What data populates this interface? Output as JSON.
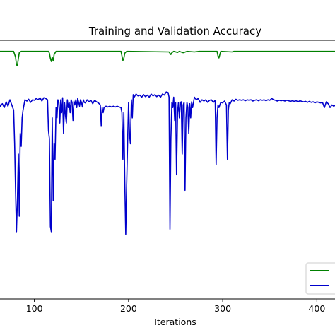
{
  "chart_data": {
    "type": "line",
    "title": "Training and Validation Accuracy",
    "xlabel": "Iterations",
    "ylabel": "",
    "xlim": [
      62,
      420
    ],
    "ylim": [
      0.0,
      1.0
    ],
    "x_ticks": [
      100,
      200,
      300,
      400
    ],
    "grid": false,
    "legend_placement": "bottom-right",
    "series": [
      {
        "name": "",
        "color": "#008000",
        "points": [
          [
            62,
            0.957
          ],
          [
            78,
            0.957
          ],
          [
            80,
            0.935
          ],
          [
            81,
            0.905
          ],
          [
            82,
            0.902
          ],
          [
            83,
            0.93
          ],
          [
            84,
            0.952
          ],
          [
            86,
            0.957
          ],
          [
            115,
            0.957
          ],
          [
            116,
            0.95
          ],
          [
            117,
            0.93
          ],
          [
            118,
            0.918
          ],
          [
            119,
            0.935
          ],
          [
            120,
            0.92
          ],
          [
            121,
            0.945
          ],
          [
            123,
            0.957
          ],
          [
            192,
            0.957
          ],
          [
            193,
            0.94
          ],
          [
            194,
            0.922
          ],
          [
            195,
            0.93
          ],
          [
            196,
            0.95
          ],
          [
            198,
            0.957
          ],
          [
            243,
            0.955
          ],
          [
            245,
            0.945
          ],
          [
            246,
            0.952
          ],
          [
            248,
            0.957
          ],
          [
            252,
            0.953
          ],
          [
            254,
            0.957
          ],
          [
            258,
            0.952
          ],
          [
            262,
            0.957
          ],
          [
            270,
            0.955
          ],
          [
            275,
            0.957
          ],
          [
            294,
            0.957
          ],
          [
            295,
            0.94
          ],
          [
            296,
            0.932
          ],
          [
            297,
            0.945
          ],
          [
            298,
            0.957
          ],
          [
            310,
            0.955
          ],
          [
            312,
            0.957
          ],
          [
            420,
            0.957
          ]
        ]
      },
      {
        "name": "",
        "color": "#0000cc",
        "points": [
          [
            62,
            0.76
          ],
          [
            64,
            0.745
          ],
          [
            66,
            0.755
          ],
          [
            68,
            0.74
          ],
          [
            70,
            0.762
          ],
          [
            72,
            0.745
          ],
          [
            74,
            0.77
          ],
          [
            76,
            0.75
          ],
          [
            78,
            0.73
          ],
          [
            79,
            0.6
          ],
          [
            80,
            0.42
          ],
          [
            81,
            0.26
          ],
          [
            82,
            0.38
          ],
          [
            83,
            0.56
          ],
          [
            84,
            0.32
          ],
          [
            85,
            0.64
          ],
          [
            86,
            0.59
          ],
          [
            87,
            0.7
          ],
          [
            88,
            0.73
          ],
          [
            90,
            0.77
          ],
          [
            92,
            0.765
          ],
          [
            94,
            0.772
          ],
          [
            96,
            0.76
          ],
          [
            98,
            0.77
          ],
          [
            100,
            0.768
          ],
          [
            102,
            0.775
          ],
          [
            104,
            0.77
          ],
          [
            106,
            0.778
          ],
          [
            108,
            0.765
          ],
          [
            110,
            0.778
          ],
          [
            112,
            0.775
          ],
          [
            114,
            0.77
          ],
          [
            115,
            0.65
          ],
          [
            116,
            0.62
          ],
          [
            117,
            0.28
          ],
          [
            118,
            0.26
          ],
          [
            119,
            0.7
          ],
          [
            120,
            0.38
          ],
          [
            121,
            0.6
          ],
          [
            122,
            0.54
          ],
          [
            123,
            0.74
          ],
          [
            124,
            0.7
          ],
          [
            125,
            0.77
          ],
          [
            126,
            0.76
          ],
          [
            127,
            0.68
          ],
          [
            128,
            0.77
          ],
          [
            129,
            0.72
          ],
          [
            130,
            0.778
          ],
          [
            131,
            0.64
          ],
          [
            132,
            0.76
          ],
          [
            133,
            0.71
          ],
          [
            134,
            0.68
          ],
          [
            135,
            0.77
          ],
          [
            136,
            0.74
          ],
          [
            137,
            0.76
          ],
          [
            138,
            0.72
          ],
          [
            139,
            0.77
          ],
          [
            140,
            0.76
          ],
          [
            141,
            0.69
          ],
          [
            142,
            0.765
          ],
          [
            143,
            0.75
          ],
          [
            144,
            0.77
          ],
          [
            145,
            0.74
          ],
          [
            146,
            0.775
          ],
          [
            147,
            0.76
          ],
          [
            148,
            0.745
          ],
          [
            149,
            0.77
          ],
          [
            150,
            0.76
          ],
          [
            151,
            0.742
          ],
          [
            152,
            0.77
          ],
          [
            153,
            0.76
          ],
          [
            154,
            0.758
          ],
          [
            156,
            0.77
          ],
          [
            158,
            0.762
          ],
          [
            160,
            0.768
          ],
          [
            162,
            0.755
          ],
          [
            164,
            0.768
          ],
          [
            166,
            0.762
          ],
          [
            168,
            0.758
          ],
          [
            170,
            0.75
          ],
          [
            171,
            0.67
          ],
          [
            172,
            0.74
          ],
          [
            173,
            0.72
          ],
          [
            174,
            0.74
          ],
          [
            176,
            0.745
          ],
          [
            178,
            0.742
          ],
          [
            180,
            0.745
          ],
          [
            182,
            0.742
          ],
          [
            184,
            0.745
          ],
          [
            186,
            0.742
          ],
          [
            188,
            0.745
          ],
          [
            190,
            0.742
          ],
          [
            192,
            0.74
          ],
          [
            193,
            0.72
          ],
          [
            194,
            0.54
          ],
          [
            195,
            0.72
          ],
          [
            196,
            0.46
          ],
          [
            197,
            0.25
          ],
          [
            198,
            0.44
          ],
          [
            199,
            0.6
          ],
          [
            200,
            0.76
          ],
          [
            201,
            0.64
          ],
          [
            202,
            0.6
          ],
          [
            203,
            0.77
          ],
          [
            204,
            0.7
          ],
          [
            205,
            0.79
          ],
          [
            206,
            0.78
          ],
          [
            208,
            0.792
          ],
          [
            210,
            0.785
          ],
          [
            212,
            0.788
          ],
          [
            214,
            0.78
          ],
          [
            216,
            0.79
          ],
          [
            218,
            0.782
          ],
          [
            220,
            0.788
          ],
          [
            222,
            0.78
          ],
          [
            224,
            0.792
          ],
          [
            226,
            0.785
          ],
          [
            228,
            0.79
          ],
          [
            230,
            0.782
          ],
          [
            232,
            0.788
          ],
          [
            234,
            0.78
          ],
          [
            236,
            0.792
          ],
          [
            238,
            0.788
          ],
          [
            240,
            0.8
          ],
          [
            242,
            0.798
          ],
          [
            243,
            0.78
          ],
          [
            244,
            0.27
          ],
          [
            245,
            0.62
          ],
          [
            246,
            0.76
          ],
          [
            247,
            0.74
          ],
          [
            248,
            0.78
          ],
          [
            249,
            0.69
          ],
          [
            250,
            0.76
          ],
          [
            251,
            0.48
          ],
          [
            252,
            0.72
          ],
          [
            253,
            0.76
          ],
          [
            254,
            0.7
          ],
          [
            255,
            0.76
          ],
          [
            256,
            0.762
          ],
          [
            257,
            0.56
          ],
          [
            258,
            0.75
          ],
          [
            259,
            0.76
          ],
          [
            260,
            0.42
          ],
          [
            261,
            0.7
          ],
          [
            262,
            0.76
          ],
          [
            263,
            0.74
          ],
          [
            264,
            0.64
          ],
          [
            265,
            0.755
          ],
          [
            266,
            0.7
          ],
          [
            267,
            0.762
          ],
          [
            268,
            0.74
          ],
          [
            270,
            0.78
          ],
          [
            272,
            0.77
          ],
          [
            274,
            0.775
          ],
          [
            276,
            0.76
          ],
          [
            278,
            0.77
          ],
          [
            280,
            0.765
          ],
          [
            282,
            0.77
          ],
          [
            284,
            0.76
          ],
          [
            286,
            0.768
          ],
          [
            288,
            0.77
          ],
          [
            290,
            0.76
          ],
          [
            292,
            0.768
          ],
          [
            293,
            0.52
          ],
          [
            294,
            0.7
          ],
          [
            295,
            0.75
          ],
          [
            296,
            0.74
          ],
          [
            298,
            0.76
          ],
          [
            300,
            0.758
          ],
          [
            302,
            0.765
          ],
          [
            304,
            0.75
          ],
          [
            305,
            0.54
          ],
          [
            306,
            0.73
          ],
          [
            307,
            0.76
          ],
          [
            308,
            0.755
          ],
          [
            310,
            0.77
          ],
          [
            312,
            0.765
          ],
          [
            314,
            0.772
          ],
          [
            316,
            0.768
          ],
          [
            318,
            0.77
          ],
          [
            320,
            0.768
          ],
          [
            322,
            0.77
          ],
          [
            324,
            0.766
          ],
          [
            326,
            0.77
          ],
          [
            328,
            0.768
          ],
          [
            330,
            0.77
          ],
          [
            332,
            0.765
          ],
          [
            334,
            0.768
          ],
          [
            336,
            0.77
          ],
          [
            338,
            0.766
          ],
          [
            340,
            0.77
          ],
          [
            342,
            0.768
          ],
          [
            344,
            0.77
          ],
          [
            346,
            0.766
          ],
          [
            348,
            0.77
          ],
          [
            350,
            0.768
          ],
          [
            352,
            0.775
          ],
          [
            354,
            0.77
          ],
          [
            356,
            0.768
          ],
          [
            358,
            0.765
          ],
          [
            360,
            0.768
          ],
          [
            362,
            0.766
          ],
          [
            364,
            0.768
          ],
          [
            366,
            0.765
          ],
          [
            368,
            0.768
          ],
          [
            370,
            0.766
          ],
          [
            372,
            0.764
          ],
          [
            374,
            0.766
          ],
          [
            376,
            0.764
          ],
          [
            378,
            0.766
          ],
          [
            380,
            0.762
          ],
          [
            382,
            0.766
          ],
          [
            384,
            0.764
          ],
          [
            386,
            0.762
          ],
          [
            388,
            0.764
          ],
          [
            390,
            0.76
          ],
          [
            392,
            0.764
          ],
          [
            394,
            0.76
          ],
          [
            396,
            0.762
          ],
          [
            398,
            0.758
          ],
          [
            400,
            0.762
          ],
          [
            402,
            0.76
          ],
          [
            404,
            0.758
          ],
          [
            406,
            0.76
          ],
          [
            408,
            0.74
          ],
          [
            410,
            0.762
          ],
          [
            412,
            0.755
          ],
          [
            414,
            0.74
          ],
          [
            416,
            0.75
          ],
          [
            418,
            0.745
          ],
          [
            420,
            0.75
          ]
        ]
      }
    ]
  }
}
